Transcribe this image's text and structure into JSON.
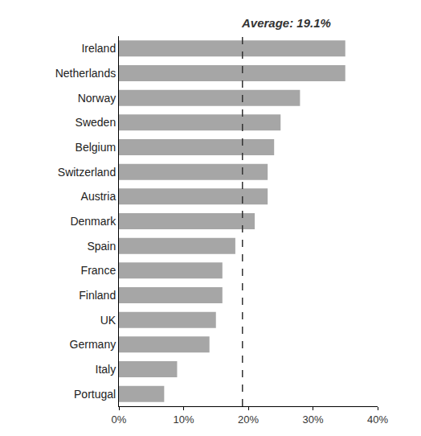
{
  "chart_data": {
    "type": "bar",
    "orientation": "horizontal",
    "categories": [
      "Ireland",
      "Netherlands",
      "Norway",
      "Sweden",
      "Belgium",
      "Switzerland",
      "Austria",
      "Denmark",
      "Spain",
      "France",
      "Finland",
      "UK",
      "Germany",
      "Italy",
      "Portugal"
    ],
    "values": [
      35,
      35,
      28,
      25,
      24,
      23,
      23,
      21,
      18,
      16,
      16,
      15,
      14,
      9,
      7
    ],
    "color": "#a6a6a6",
    "xlim": [
      0,
      40
    ],
    "xticks": [
      {
        "value": 0,
        "label": "0%"
      },
      {
        "value": 10,
        "label": "10%"
      },
      {
        "value": 20,
        "label": "20%"
      },
      {
        "value": 30,
        "label": "30%"
      },
      {
        "value": 40,
        "label": "40%"
      }
    ],
    "grid": false,
    "annotations": [
      {
        "text": "Average: 19.1%",
        "x": 19.1,
        "line_style": "dashed"
      }
    ]
  }
}
